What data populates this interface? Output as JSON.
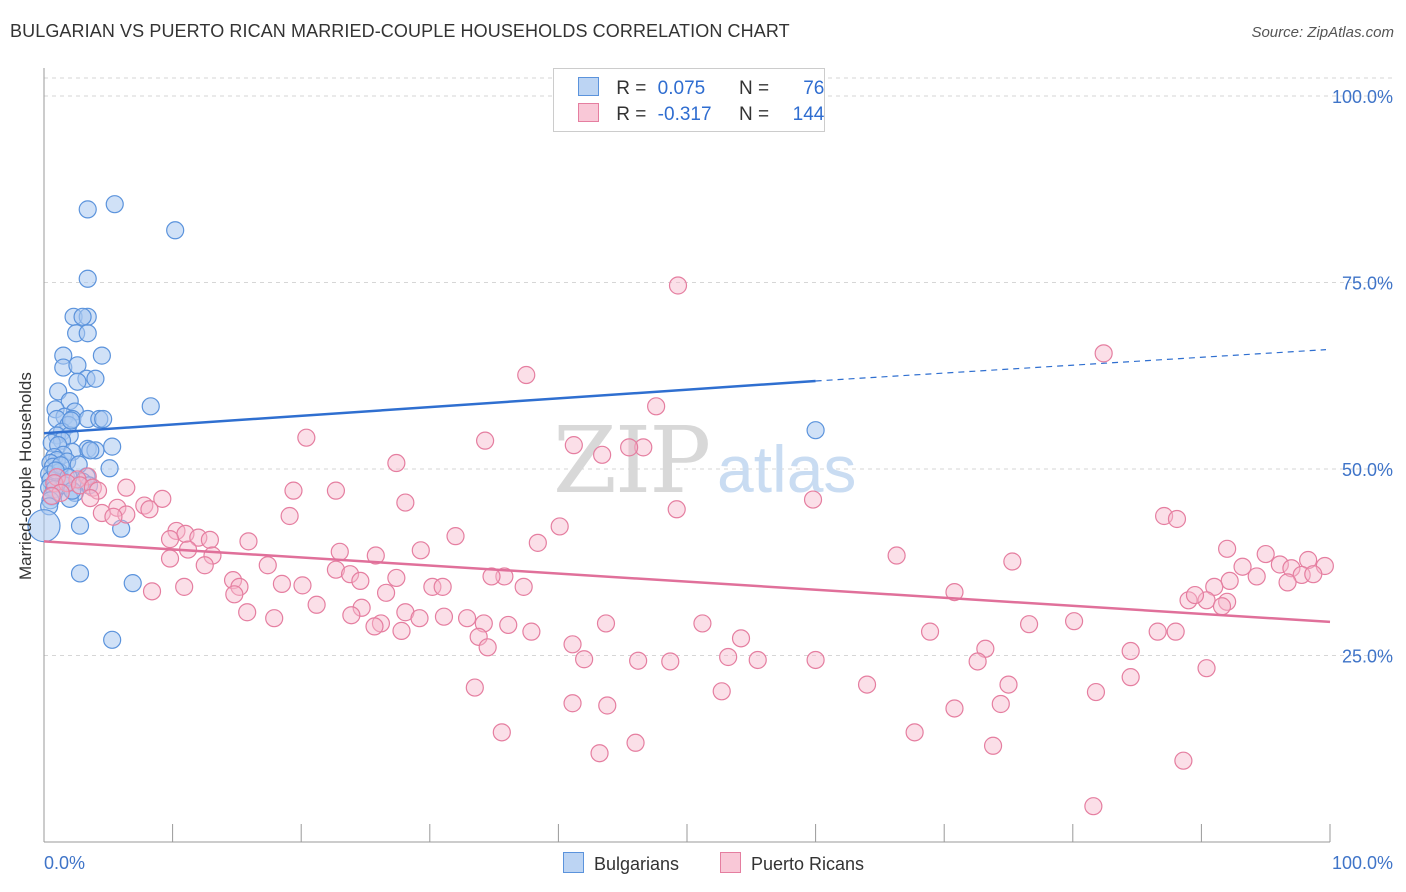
{
  "title": "BULGARIAN VS PUERTO RICAN MARRIED-COUPLE HOUSEHOLDS CORRELATION CHART",
  "source": "Source: ZipAtlas.com",
  "watermark": {
    "zip": "ZIP",
    "atlas": "atlas"
  },
  "legend": {
    "rows": [
      {
        "r_label": "R =",
        "r_value": "0.075",
        "n_label": "N =",
        "n_value": "76"
      },
      {
        "r_label": "R =",
        "r_value": "-0.317",
        "n_label": "N =",
        "n_value": "144"
      }
    ]
  },
  "bottom_legend": [
    "Bulgarians",
    "Puerto Ricans"
  ],
  "colors": {
    "blue_fill": "#a9c8f0",
    "blue_stroke": "#5b93dc",
    "blue_line": "#2f6fd0",
    "pink_fill": "#f6b8cc",
    "pink_stroke": "#e57ea0",
    "pink_line": "#e0709a",
    "axis_text": "#3f74c8",
    "grid": "#d6d6d6"
  },
  "chart_data": {
    "type": "scatter",
    "title": "BULGARIAN VS PUERTO RICAN MARRIED-COUPLE HOUSEHOLDS CORRELATION CHART",
    "xlabel": "",
    "ylabel": "Married-couple Households",
    "xlim": [
      0,
      100
    ],
    "ylim": [
      0,
      100
    ],
    "x_tick_labels": [
      "0.0%",
      "100.0%"
    ],
    "y_ticks": [
      25,
      50,
      75,
      100
    ],
    "y_tick_labels": [
      "25.0%",
      "50.0%",
      "75.0%",
      "100.0%"
    ],
    "series": [
      {
        "name": "Bulgarians",
        "r": 0.075,
        "n": 76,
        "trend": {
          "x0": 0,
          "y0": 54.8,
          "x1": 60,
          "y1": 61.8,
          "dash_x1": 100,
          "dash_y1": 66.0
        },
        "points": [
          [
            3.4,
            84.8
          ],
          [
            5.5,
            85.5
          ],
          [
            10.2,
            82.0
          ],
          [
            3.4,
            75.5
          ],
          [
            2.3,
            70.4
          ],
          [
            3.4,
            70.4
          ],
          [
            3.0,
            70.4
          ],
          [
            2.5,
            68.2
          ],
          [
            3.4,
            68.2
          ],
          [
            1.5,
            65.2
          ],
          [
            4.5,
            65.2
          ],
          [
            1.5,
            63.6
          ],
          [
            2.6,
            63.9
          ],
          [
            3.3,
            62.1
          ],
          [
            4.0,
            62.1
          ],
          [
            2.6,
            61.7
          ],
          [
            1.1,
            60.4
          ],
          [
            2.0,
            59.1
          ],
          [
            8.3,
            58.4
          ],
          [
            0.9,
            58.0
          ],
          [
            2.4,
            57.7
          ],
          [
            1.6,
            57.0
          ],
          [
            1.0,
            56.7
          ],
          [
            2.2,
            56.7
          ],
          [
            3.4,
            56.7
          ],
          [
            4.3,
            56.7
          ],
          [
            4.6,
            56.7
          ],
          [
            1.9,
            55.9
          ],
          [
            1.4,
            55.0
          ],
          [
            1.0,
            54.5
          ],
          [
            2.0,
            54.5
          ],
          [
            1.4,
            53.8
          ],
          [
            0.6,
            53.5
          ],
          [
            1.1,
            53.2
          ],
          [
            5.3,
            53.0
          ],
          [
            3.4,
            52.7
          ],
          [
            4.0,
            52.5
          ],
          [
            2.2,
            52.3
          ],
          [
            1.5,
            51.9
          ],
          [
            0.8,
            51.6
          ],
          [
            1.0,
            51.2
          ],
          [
            1.8,
            51.0
          ],
          [
            0.5,
            50.8
          ],
          [
            0.7,
            50.3
          ],
          [
            5.1,
            50.1
          ],
          [
            1.2,
            49.6
          ],
          [
            0.4,
            49.3
          ],
          [
            1.7,
            49.0
          ],
          [
            3.3,
            49.0
          ],
          [
            0.5,
            48.5
          ],
          [
            1.5,
            48.3
          ],
          [
            3.0,
            48.3
          ],
          [
            0.9,
            48.0
          ],
          [
            1.6,
            47.8
          ],
          [
            3.5,
            47.8
          ],
          [
            0.4,
            47.5
          ],
          [
            0.8,
            47.3
          ],
          [
            2.4,
            46.8
          ],
          [
            0.6,
            46.3
          ],
          [
            2.0,
            46.0
          ],
          [
            0.5,
            45.8
          ],
          [
            0.4,
            45.0
          ],
          [
            0.0,
            42.4
          ],
          [
            2.8,
            42.4
          ],
          [
            6.0,
            42.0
          ],
          [
            60.0,
            55.2
          ],
          [
            2.8,
            36.0
          ],
          [
            6.9,
            34.7
          ],
          [
            5.3,
            27.1
          ],
          [
            2.1,
            56.5
          ],
          [
            3.6,
            52.5
          ],
          [
            1.3,
            50.5
          ],
          [
            2.7,
            50.6
          ],
          [
            0.9,
            49.8
          ],
          [
            1.9,
            48.9
          ],
          [
            2.2,
            47.1
          ]
        ]
      },
      {
        "name": "Puerto Ricans",
        "r": -0.317,
        "n": 144,
        "trend": {
          "x0": 0,
          "y0": 40.3,
          "x1": 100,
          "y1": 29.5
        },
        "points": [
          [
            49.3,
            74.6
          ],
          [
            82.4,
            65.5
          ],
          [
            37.5,
            62.6
          ],
          [
            47.6,
            58.4
          ],
          [
            20.4,
            54.2
          ],
          [
            34.3,
            53.8
          ],
          [
            41.2,
            53.2
          ],
          [
            46.6,
            52.9
          ],
          [
            45.5,
            52.9
          ],
          [
            43.4,
            51.9
          ],
          [
            27.4,
            50.8
          ],
          [
            3.4,
            49.0
          ],
          [
            1.0,
            48.9
          ],
          [
            2.6,
            48.6
          ],
          [
            0.8,
            48.1
          ],
          [
            1.8,
            48.1
          ],
          [
            2.8,
            47.8
          ],
          [
            3.8,
            47.5
          ],
          [
            6.4,
            47.5
          ],
          [
            4.2,
            47.1
          ],
          [
            19.4,
            47.1
          ],
          [
            22.7,
            47.1
          ],
          [
            1.3,
            46.8
          ],
          [
            0.6,
            46.4
          ],
          [
            3.6,
            46.1
          ],
          [
            9.2,
            46.0
          ],
          [
            59.8,
            45.9
          ],
          [
            28.1,
            45.5
          ],
          [
            7.8,
            45.1
          ],
          [
            5.7,
            44.8
          ],
          [
            8.2,
            44.6
          ],
          [
            49.2,
            44.6
          ],
          [
            4.5,
            44.1
          ],
          [
            6.4,
            43.9
          ],
          [
            5.4,
            43.6
          ],
          [
            19.1,
            43.7
          ],
          [
            87.1,
            43.7
          ],
          [
            88.1,
            43.3
          ],
          [
            40.1,
            42.3
          ],
          [
            10.3,
            41.7
          ],
          [
            11.0,
            41.3
          ],
          [
            32.0,
            41.0
          ],
          [
            12.0,
            40.8
          ],
          [
            9.8,
            40.6
          ],
          [
            15.9,
            40.3
          ],
          [
            12.9,
            40.5
          ],
          [
            38.4,
            40.1
          ],
          [
            11.2,
            39.2
          ],
          [
            29.3,
            39.1
          ],
          [
            23.0,
            38.9
          ],
          [
            66.3,
            38.4
          ],
          [
            25.8,
            38.4
          ],
          [
            13.1,
            38.4
          ],
          [
            9.8,
            38.0
          ],
          [
            75.3,
            37.6
          ],
          [
            12.5,
            37.1
          ],
          [
            17.4,
            37.1
          ],
          [
            22.7,
            36.5
          ],
          [
            23.8,
            35.9
          ],
          [
            35.8,
            35.6
          ],
          [
            34.8,
            35.6
          ],
          [
            27.4,
            35.4
          ],
          [
            14.7,
            35.1
          ],
          [
            24.6,
            35.0
          ],
          [
            18.5,
            34.6
          ],
          [
            30.2,
            34.2
          ],
          [
            31.0,
            34.2
          ],
          [
            20.1,
            34.4
          ],
          [
            15.2,
            34.2
          ],
          [
            10.9,
            34.2
          ],
          [
            8.4,
            33.6
          ],
          [
            37.3,
            34.2
          ],
          [
            26.6,
            33.4
          ],
          [
            70.8,
            33.5
          ],
          [
            14.8,
            33.2
          ],
          [
            21.2,
            31.8
          ],
          [
            24.7,
            31.4
          ],
          [
            28.1,
            30.8
          ],
          [
            31.1,
            30.2
          ],
          [
            15.8,
            30.8
          ],
          [
            23.9,
            30.4
          ],
          [
            29.2,
            30.0
          ],
          [
            17.9,
            30.0
          ],
          [
            32.9,
            30.0
          ],
          [
            34.2,
            29.3
          ],
          [
            36.1,
            29.1
          ],
          [
            43.7,
            29.3
          ],
          [
            51.2,
            29.3
          ],
          [
            76.6,
            29.2
          ],
          [
            26.2,
            29.3
          ],
          [
            27.8,
            28.3
          ],
          [
            37.9,
            28.2
          ],
          [
            25.7,
            28.9
          ],
          [
            33.8,
            27.5
          ],
          [
            41.1,
            26.5
          ],
          [
            54.2,
            27.3
          ],
          [
            34.5,
            26.1
          ],
          [
            80.1,
            29.6
          ],
          [
            86.6,
            28.2
          ],
          [
            88.0,
            28.2
          ],
          [
            73.2,
            25.9
          ],
          [
            84.5,
            25.6
          ],
          [
            53.2,
            24.8
          ],
          [
            68.9,
            28.2
          ],
          [
            72.6,
            24.2
          ],
          [
            42.0,
            24.5
          ],
          [
            48.7,
            24.2
          ],
          [
            46.2,
            24.3
          ],
          [
            55.5,
            24.4
          ],
          [
            60.0,
            24.4
          ],
          [
            75.0,
            21.1
          ],
          [
            33.5,
            20.7
          ],
          [
            64.0,
            21.1
          ],
          [
            52.7,
            20.2
          ],
          [
            81.8,
            20.1
          ],
          [
            84.5,
            22.1
          ],
          [
            90.4,
            23.3
          ],
          [
            43.8,
            18.3
          ],
          [
            70.8,
            17.9
          ],
          [
            74.4,
            18.5
          ],
          [
            41.1,
            18.6
          ],
          [
            35.6,
            14.7
          ],
          [
            67.7,
            14.7
          ],
          [
            73.8,
            12.9
          ],
          [
            46.0,
            13.3
          ],
          [
            43.2,
            11.9
          ],
          [
            88.6,
            10.9
          ],
          [
            81.6,
            4.8
          ],
          [
            92.0,
            39.3
          ],
          [
            95.0,
            38.6
          ],
          [
            96.1,
            37.2
          ],
          [
            98.3,
            37.8
          ],
          [
            99.6,
            37.0
          ],
          [
            93.2,
            36.9
          ],
          [
            97.0,
            36.7
          ],
          [
            94.3,
            35.6
          ],
          [
            97.8,
            35.8
          ],
          [
            98.7,
            35.9
          ],
          [
            96.7,
            34.8
          ],
          [
            92.2,
            35.0
          ],
          [
            91.0,
            34.2
          ],
          [
            90.4,
            32.4
          ],
          [
            92.0,
            32.2
          ],
          [
            89.0,
            32.4
          ],
          [
            91.6,
            31.6
          ],
          [
            89.5,
            33.1
          ]
        ]
      }
    ]
  }
}
